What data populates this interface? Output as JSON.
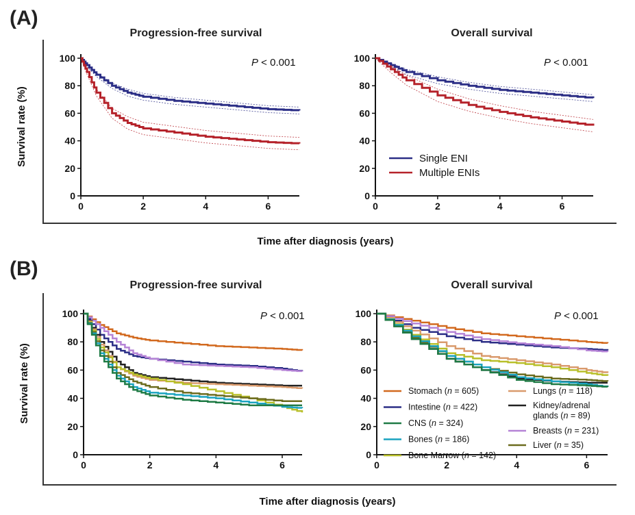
{
  "panels": {
    "a": {
      "label": "(A)",
      "xlabel": "Time after diagnosis (years)"
    },
    "b": {
      "label": "(B)",
      "xlabel": "Time after diagnosis (years)"
    }
  },
  "colors": {
    "single": "#2b2e86",
    "multiple": "#b5222a",
    "stomach": "#d2691e",
    "intestine": "#2b2e86",
    "cns": "#1e7a44",
    "bones": "#1aa3bf",
    "bone_marrow": "#b8bf2a",
    "lungs": "#d99a6c",
    "kidney": "#222222",
    "breasts": "#b583d6",
    "liver": "#6b6b1e"
  },
  "chart_data": [
    {
      "type": "line",
      "panel": "A",
      "title": "Progression-free survival",
      "p_value": "< 0.001",
      "xlabel": "Time after diagnosis (years)",
      "ylabel": "Survival rate (%)",
      "xlim": [
        0,
        7
      ],
      "ylim": [
        0,
        100
      ],
      "xticks": [
        0,
        2,
        4,
        6
      ],
      "yticks": [
        0,
        20,
        40,
        60,
        80,
        100
      ],
      "ci_band": true,
      "series": [
        {
          "key": "single",
          "name": "Single ENI",
          "x": [
            0,
            0.2,
            0.5,
            1,
            1.5,
            2,
            3,
            4,
            5,
            6,
            7
          ],
          "y": [
            100,
            95,
            88,
            80,
            75,
            72,
            69,
            67,
            65,
            63,
            62
          ]
        },
        {
          "key": "multiple",
          "name": "Multiple ENIs",
          "x": [
            0,
            0.2,
            0.5,
            1,
            1.5,
            2,
            3,
            4,
            5,
            6,
            7
          ],
          "y": [
            100,
            90,
            75,
            60,
            53,
            49,
            46,
            43,
            41,
            39,
            38
          ]
        }
      ]
    },
    {
      "type": "line",
      "panel": "A",
      "title": "Overall survival",
      "p_value": "< 0.001",
      "xlabel": "Time after diagnosis (years)",
      "ylabel": "",
      "xlim": [
        0,
        7
      ],
      "ylim": [
        0,
        100
      ],
      "xticks": [
        0,
        2,
        4,
        6
      ],
      "yticks": [
        0,
        20,
        40,
        60,
        80,
        100
      ],
      "ci_band": true,
      "legend": {
        "position": "bottom-left",
        "entries": [
          {
            "key": "single",
            "label": "Single ENI"
          },
          {
            "key": "multiple",
            "label": "Multiple ENIs"
          }
        ]
      },
      "series": [
        {
          "key": "single",
          "name": "Single ENI",
          "x": [
            0,
            0.5,
            1,
            2,
            3,
            4,
            5,
            6,
            7
          ],
          "y": [
            100,
            95,
            90,
            84,
            80,
            77,
            75,
            73,
            71
          ]
        },
        {
          "key": "multiple",
          "name": "Multiple ENIs",
          "x": [
            0,
            0.5,
            1,
            2,
            3,
            4,
            5,
            6,
            7
          ],
          "y": [
            100,
            92,
            84,
            73,
            66,
            61,
            57,
            54,
            51
          ]
        }
      ]
    },
    {
      "type": "line",
      "panel": "B",
      "title": "Progression-free survival",
      "p_value": "< 0.001",
      "xlabel": "Time after diagnosis (years)",
      "ylabel": "Survival rate (%)",
      "xlim": [
        0,
        6.6
      ],
      "ylim": [
        0,
        100
      ],
      "xticks": [
        0,
        2,
        4,
        6
      ],
      "yticks": [
        0,
        20,
        40,
        60,
        80,
        100
      ],
      "series": [
        {
          "key": "stomach",
          "name": "Stomach",
          "x": [
            0,
            0.5,
            1,
            1.5,
            2,
            3,
            4,
            5,
            6,
            6.6
          ],
          "y": [
            100,
            92,
            86,
            83,
            81,
            79,
            77,
            76,
            75,
            74
          ]
        },
        {
          "key": "intestine",
          "name": "Intestine",
          "x": [
            0,
            0.5,
            1,
            1.5,
            2,
            3,
            4,
            5,
            6,
            6.6
          ],
          "y": [
            100,
            85,
            75,
            70,
            68,
            66,
            64,
            63,
            61,
            59
          ]
        },
        {
          "key": "breasts",
          "name": "Breasts",
          "x": [
            0,
            0.5,
            1,
            1.5,
            2,
            3,
            4,
            5,
            6,
            6.6
          ],
          "y": [
            100,
            90,
            80,
            72,
            68,
            64,
            63,
            62,
            60,
            59
          ]
        },
        {
          "key": "kidney",
          "name": "Kidney/adrenal glands",
          "x": [
            0,
            0.5,
            1,
            1.5,
            2,
            3,
            4,
            5,
            6,
            6.6
          ],
          "y": [
            100,
            80,
            66,
            58,
            55,
            53,
            51,
            50,
            49,
            49
          ]
        },
        {
          "key": "lungs",
          "name": "Lungs",
          "x": [
            0,
            0.5,
            1,
            1.5,
            2,
            3,
            4,
            5,
            6,
            6.6
          ],
          "y": [
            100,
            78,
            62,
            56,
            53,
            51,
            50,
            49,
            48,
            47
          ]
        },
        {
          "key": "bone_marrow",
          "name": "Bone Marrow",
          "x": [
            0,
            0.5,
            1,
            1.5,
            2,
            3,
            4,
            5,
            6,
            6.6
          ],
          "y": [
            100,
            76,
            62,
            57,
            54,
            50,
            45,
            40,
            34,
            30
          ]
        },
        {
          "key": "liver",
          "name": "Liver",
          "x": [
            0,
            0.5,
            1,
            1.5,
            2,
            3,
            4,
            5,
            6,
            6.6
          ],
          "y": [
            100,
            74,
            58,
            52,
            48,
            44,
            42,
            40,
            38,
            38
          ]
        },
        {
          "key": "bones",
          "name": "Bones",
          "x": [
            0,
            0.5,
            1,
            1.5,
            2,
            3,
            4,
            5,
            6,
            6.6
          ],
          "y": [
            100,
            72,
            56,
            48,
            44,
            42,
            40,
            37,
            34,
            33
          ]
        },
        {
          "key": "cns",
          "name": "CNS",
          "x": [
            0,
            0.5,
            1,
            1.5,
            2,
            3,
            4,
            5,
            6,
            6.6
          ],
          "y": [
            100,
            70,
            54,
            46,
            42,
            39,
            37,
            35,
            35,
            35
          ]
        }
      ]
    },
    {
      "type": "line",
      "panel": "B",
      "title": "Overall survival",
      "p_value": "< 0.001",
      "xlabel": "Time after diagnosis (years)",
      "ylabel": "",
      "xlim": [
        0,
        6.6
      ],
      "ylim": [
        0,
        100
      ],
      "xticks": [
        0,
        2,
        4,
        6
      ],
      "yticks": [
        0,
        20,
        40,
        60,
        80,
        100
      ],
      "legend": {
        "position": "bottom",
        "entries": [
          {
            "key": "stomach",
            "label": "Stomach",
            "n": "605"
          },
          {
            "key": "intestine",
            "label": "Intestine",
            "n": "422"
          },
          {
            "key": "cns",
            "label": "CNS",
            "n": "324"
          },
          {
            "key": "bones",
            "label": "Bones",
            "n": "186"
          },
          {
            "key": "bone_marrow",
            "label": "Bone Marrow",
            "n": "142"
          },
          {
            "key": "lungs",
            "label": "Lungs",
            "n": "118"
          },
          {
            "key": "kidney",
            "label": "Kidney/adrenal",
            "label2": "glands",
            "n": "89"
          },
          {
            "key": "breasts",
            "label": "Breasts",
            "n": "231"
          },
          {
            "key": "liver",
            "label": "Liver",
            "n": "35"
          }
        ]
      },
      "series": [
        {
          "key": "stomach",
          "name": "Stomach",
          "x": [
            0,
            1,
            2,
            3,
            4,
            5,
            6,
            6.6
          ],
          "y": [
            100,
            95,
            90,
            86,
            84,
            82,
            80,
            79
          ]
        },
        {
          "key": "intestine",
          "name": "Intestine",
          "x": [
            0,
            1,
            2,
            3,
            4,
            5,
            6,
            6.6
          ],
          "y": [
            100,
            90,
            84,
            80,
            78,
            76,
            75,
            74
          ]
        },
        {
          "key": "breasts",
          "name": "Breasts",
          "x": [
            0,
            1,
            2,
            3,
            4,
            5,
            6,
            6.6
          ],
          "y": [
            100,
            93,
            87,
            82,
            79,
            77,
            74,
            73
          ]
        },
        {
          "key": "lungs",
          "name": "Lungs",
          "x": [
            0,
            1,
            2,
            3,
            4,
            5,
            6,
            6.6
          ],
          "y": [
            100,
            88,
            77,
            70,
            67,
            64,
            60,
            58
          ]
        },
        {
          "key": "bone_marrow",
          "name": "Bone Marrow",
          "x": [
            0,
            1,
            2,
            3,
            4,
            5,
            6,
            6.6
          ],
          "y": [
            100,
            85,
            72,
            67,
            65,
            62,
            58,
            56
          ]
        },
        {
          "key": "kidney",
          "name": "Kidney/adrenal glands",
          "x": [
            0,
            1,
            2,
            3,
            4,
            5,
            6,
            6.6
          ],
          "y": [
            100,
            82,
            68,
            60,
            54,
            52,
            51,
            51
          ]
        },
        {
          "key": "liver",
          "name": "Liver",
          "x": [
            0,
            1,
            2,
            3,
            4,
            5,
            6,
            6.6
          ],
          "y": [
            100,
            83,
            70,
            62,
            57,
            54,
            53,
            52
          ]
        },
        {
          "key": "bones",
          "name": "Bones",
          "x": [
            0,
            1,
            2,
            3,
            4,
            5,
            6,
            6.6
          ],
          "y": [
            100,
            84,
            70,
            62,
            55,
            52,
            50,
            48
          ]
        },
        {
          "key": "cns",
          "name": "CNS",
          "x": [
            0,
            1,
            2,
            3,
            4,
            5,
            6,
            6.6
          ],
          "y": [
            100,
            82,
            68,
            60,
            53,
            50,
            49,
            48
          ]
        }
      ]
    }
  ]
}
